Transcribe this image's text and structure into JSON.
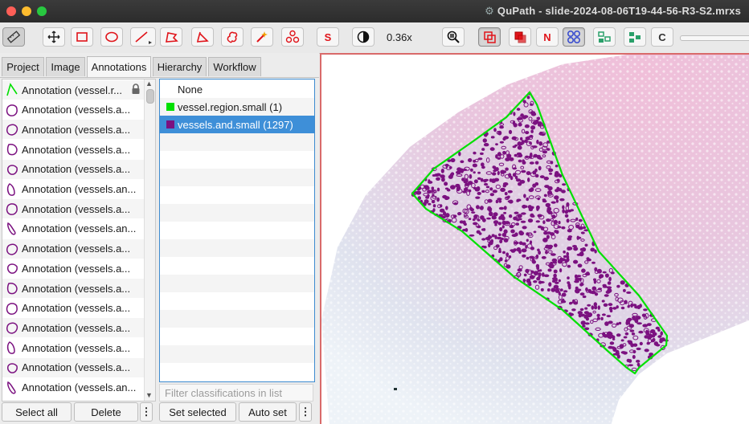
{
  "window": {
    "title": "QuPath - slide-2024-08-06T19-44-56-R3-S2.mrxs"
  },
  "toolbar": {
    "zoom_label": "0.36x",
    "tools": [
      "measure",
      "move",
      "rectangle",
      "ellipse",
      "line",
      "polygon",
      "polyline",
      "brush",
      "wand",
      "points"
    ],
    "selection_mode_label": "S",
    "contrast_icon": "half-circle-icon",
    "overlay_buttons": [
      "show-annotations",
      "fill-annotations",
      "show-names",
      "show-detections",
      "show-cells",
      "show-tma",
      "show-grid"
    ],
    "names_label": "N",
    "counting_label": "C"
  },
  "tabs": [
    "Project",
    "Image",
    "Annotations",
    "Hierarchy",
    "Workflow"
  ],
  "active_tab": "Annotations",
  "annotations": [
    {
      "label": "Annotation (vessel.r...",
      "shape": "line",
      "color": "#00e000",
      "locked": true
    },
    {
      "label": "Annotation (vessels.a...",
      "shape": "blob1",
      "color": "#7b1180"
    },
    {
      "label": "Annotation (vessels.a...",
      "shape": "blob2",
      "color": "#7b1180"
    },
    {
      "label": "Annotation (vessels.a...",
      "shape": "blob3",
      "color": "#7b1180"
    },
    {
      "label": "Annotation (vessels.a...",
      "shape": "blob4",
      "color": "#7b1180"
    },
    {
      "label": "Annotation (vessels.an...",
      "shape": "blob5",
      "color": "#7b1180"
    },
    {
      "label": "Annotation (vessels.a...",
      "shape": "blob1",
      "color": "#7b1180"
    },
    {
      "label": "Annotation (vessels.an...",
      "shape": "blob6",
      "color": "#7b1180"
    },
    {
      "label": "Annotation (vessels.a...",
      "shape": "blob2",
      "color": "#7b1180"
    },
    {
      "label": "Annotation (vessels.a...",
      "shape": "blob4",
      "color": "#7b1180"
    },
    {
      "label": "Annotation (vessels.a...",
      "shape": "blob3",
      "color": "#7b1180"
    },
    {
      "label": "Annotation (vessels.a...",
      "shape": "blob1",
      "color": "#7b1180"
    },
    {
      "label": "Annotation (vessels.a...",
      "shape": "blob2",
      "color": "#7b1180"
    },
    {
      "label": "Annotation (vessels.a...",
      "shape": "blob5",
      "color": "#7b1180"
    },
    {
      "label": "Annotation (vessels.a...",
      "shape": "blob4",
      "color": "#7b1180"
    },
    {
      "label": "Annotation (vessels.an...",
      "shape": "blob6",
      "color": "#7b1180"
    }
  ],
  "classes": [
    {
      "label": "None",
      "color": null,
      "selected": false
    },
    {
      "label": "vessel.region.small (1)",
      "color": "#00e000",
      "selected": false
    },
    {
      "label": "vessels.and.small (1297)",
      "color": "#7b1180",
      "selected": true
    }
  ],
  "filter_placeholder": "Filter classifications in list",
  "buttons": {
    "select_all": "Select all",
    "delete": "Delete",
    "more": "⋮",
    "set_selected": "Set selected",
    "auto_set": "Auto set"
  },
  "colors": {
    "region_outline": "#00e000",
    "vessel_fill": "#7b1180",
    "tissue_pink": "#e8c3dc",
    "selection_blue": "#3e8fd8",
    "viewer_border": "#d96a6a"
  }
}
